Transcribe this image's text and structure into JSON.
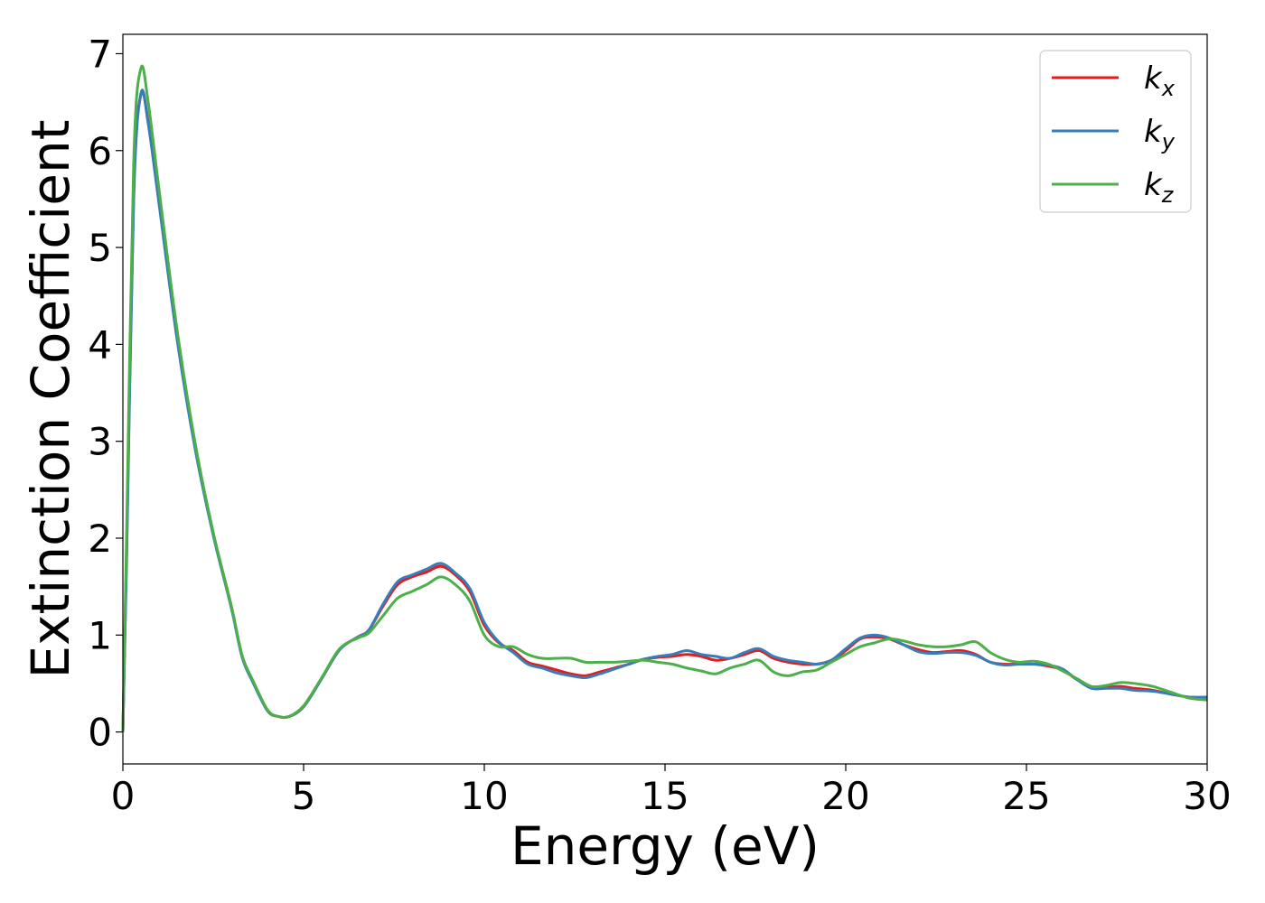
{
  "chart_data": {
    "type": "line",
    "xlabel": "Energy (eV)",
    "ylabel": "Extinction Coefficient",
    "xlim": [
      0,
      30
    ],
    "ylim": [
      -0.33,
      7.2
    ],
    "xticks": [
      0,
      5,
      10,
      15,
      20,
      25,
      30
    ],
    "xtick_labels": [
      "0",
      "5",
      "10",
      "15",
      "20",
      "25",
      "30"
    ],
    "yticks": [
      0,
      1,
      2,
      3,
      4,
      5,
      6,
      7
    ],
    "ytick_labels": [
      "0",
      "1",
      "2",
      "3",
      "4",
      "5",
      "6",
      "7"
    ],
    "grid": false,
    "legend_position": "top-right",
    "series": [
      {
        "name": "k_x",
        "label_main": "k",
        "label_sub": "x",
        "color": "#e41a1c",
        "x": [
          0,
          0.1,
          0.3,
          0.5,
          0.7,
          1.0,
          1.5,
          2.0,
          2.5,
          3.0,
          3.3,
          3.6,
          4.0,
          4.3,
          4.6,
          5.0,
          5.5,
          6.0,
          6.5,
          6.8,
          7.2,
          7.6,
          8.0,
          8.4,
          8.8,
          9.2,
          9.6,
          10.0,
          10.4,
          10.8,
          11.2,
          11.6,
          12.0,
          12.4,
          12.8,
          13.2,
          13.6,
          14.0,
          14.4,
          14.8,
          15.2,
          15.6,
          16.0,
          16.4,
          16.8,
          17.2,
          17.6,
          18.0,
          18.4,
          18.8,
          19.2,
          19.6,
          20.0,
          20.4,
          20.8,
          21.2,
          21.6,
          22.0,
          22.4,
          22.8,
          23.2,
          23.6,
          24.0,
          24.4,
          24.8,
          25.2,
          25.6,
          26.0,
          26.4,
          26.8,
          27.2,
          27.6,
          28.0,
          28.5,
          29.0,
          29.5,
          30.0
        ],
        "y": [
          0.0,
          1.8,
          5.6,
          6.58,
          6.3,
          5.5,
          4.1,
          2.95,
          2.05,
          1.3,
          0.78,
          0.52,
          0.22,
          0.16,
          0.16,
          0.26,
          0.55,
          0.85,
          0.98,
          1.05,
          1.3,
          1.52,
          1.6,
          1.65,
          1.71,
          1.62,
          1.45,
          1.1,
          0.92,
          0.84,
          0.72,
          0.68,
          0.64,
          0.6,
          0.58,
          0.62,
          0.66,
          0.7,
          0.75,
          0.77,
          0.78,
          0.8,
          0.78,
          0.74,
          0.76,
          0.8,
          0.84,
          0.76,
          0.72,
          0.7,
          0.7,
          0.74,
          0.84,
          0.96,
          0.98,
          0.96,
          0.9,
          0.85,
          0.82,
          0.83,
          0.84,
          0.8,
          0.72,
          0.7,
          0.7,
          0.7,
          0.68,
          0.64,
          0.54,
          0.46,
          0.46,
          0.47,
          0.45,
          0.43,
          0.39,
          0.36,
          0.35
        ]
      },
      {
        "name": "k_y",
        "label_main": "k",
        "label_sub": "y",
        "color": "#377eb8",
        "x": [
          0,
          0.1,
          0.3,
          0.5,
          0.7,
          1.0,
          1.5,
          2.0,
          2.5,
          3.0,
          3.3,
          3.6,
          4.0,
          4.3,
          4.6,
          5.0,
          5.5,
          6.0,
          6.5,
          6.8,
          7.2,
          7.6,
          8.0,
          8.4,
          8.8,
          9.2,
          9.6,
          10.0,
          10.4,
          10.8,
          11.2,
          11.6,
          12.0,
          12.4,
          12.8,
          13.2,
          13.6,
          14.0,
          14.4,
          14.8,
          15.2,
          15.6,
          16.0,
          16.4,
          16.8,
          17.2,
          17.6,
          18.0,
          18.4,
          18.8,
          19.2,
          19.6,
          20.0,
          20.4,
          20.8,
          21.2,
          21.6,
          22.0,
          22.4,
          22.8,
          23.2,
          23.6,
          24.0,
          24.4,
          24.8,
          25.2,
          25.6,
          26.0,
          26.4,
          26.8,
          27.2,
          27.6,
          28.0,
          28.5,
          29.0,
          29.5,
          30.0
        ],
        "y": [
          0.0,
          1.7,
          5.5,
          6.59,
          6.28,
          5.45,
          4.05,
          2.92,
          2.03,
          1.28,
          0.77,
          0.51,
          0.22,
          0.16,
          0.16,
          0.26,
          0.55,
          0.85,
          0.98,
          1.05,
          1.32,
          1.55,
          1.62,
          1.68,
          1.74,
          1.64,
          1.48,
          1.13,
          0.93,
          0.82,
          0.7,
          0.66,
          0.61,
          0.58,
          0.56,
          0.6,
          0.65,
          0.7,
          0.75,
          0.78,
          0.8,
          0.84,
          0.8,
          0.78,
          0.76,
          0.82,
          0.86,
          0.78,
          0.74,
          0.72,
          0.7,
          0.74,
          0.86,
          0.97,
          1.0,
          0.97,
          0.9,
          0.83,
          0.81,
          0.82,
          0.82,
          0.79,
          0.72,
          0.69,
          0.7,
          0.7,
          0.69,
          0.65,
          0.54,
          0.45,
          0.45,
          0.45,
          0.43,
          0.42,
          0.39,
          0.36,
          0.36
        ]
      },
      {
        "name": "k_z",
        "label_main": "k",
        "label_sub": "z",
        "color": "#4daf4a",
        "x": [
          0,
          0.1,
          0.3,
          0.5,
          0.7,
          1.0,
          1.5,
          2.0,
          2.5,
          3.0,
          3.3,
          3.6,
          4.0,
          4.3,
          4.6,
          5.0,
          5.5,
          6.0,
          6.5,
          6.8,
          7.2,
          7.6,
          8.0,
          8.4,
          8.8,
          9.2,
          9.6,
          10.0,
          10.4,
          10.8,
          11.2,
          11.6,
          12.0,
          12.4,
          12.8,
          13.2,
          13.6,
          14.0,
          14.4,
          14.8,
          15.2,
          15.6,
          16.0,
          16.4,
          16.8,
          17.2,
          17.6,
          18.0,
          18.4,
          18.8,
          19.2,
          19.6,
          20.0,
          20.4,
          20.8,
          21.2,
          21.6,
          22.0,
          22.4,
          22.8,
          23.2,
          23.6,
          24.0,
          24.4,
          24.8,
          25.2,
          25.6,
          26.0,
          26.4,
          26.8,
          27.2,
          27.6,
          28.0,
          28.5,
          29.0,
          29.5,
          30.0
        ],
        "y": [
          0.0,
          2.0,
          5.9,
          6.85,
          6.5,
          5.6,
          4.15,
          2.98,
          2.06,
          1.3,
          0.79,
          0.53,
          0.23,
          0.16,
          0.16,
          0.27,
          0.56,
          0.86,
          0.97,
          1.02,
          1.2,
          1.38,
          1.45,
          1.52,
          1.6,
          1.52,
          1.35,
          1.0,
          0.88,
          0.88,
          0.8,
          0.76,
          0.76,
          0.76,
          0.72,
          0.72,
          0.72,
          0.73,
          0.74,
          0.72,
          0.7,
          0.66,
          0.63,
          0.6,
          0.66,
          0.7,
          0.74,
          0.62,
          0.58,
          0.62,
          0.64,
          0.72,
          0.8,
          0.88,
          0.92,
          0.96,
          0.94,
          0.9,
          0.88,
          0.88,
          0.9,
          0.93,
          0.82,
          0.75,
          0.72,
          0.73,
          0.7,
          0.63,
          0.55,
          0.47,
          0.48,
          0.51,
          0.5,
          0.47,
          0.41,
          0.35,
          0.33
        ]
      }
    ]
  }
}
